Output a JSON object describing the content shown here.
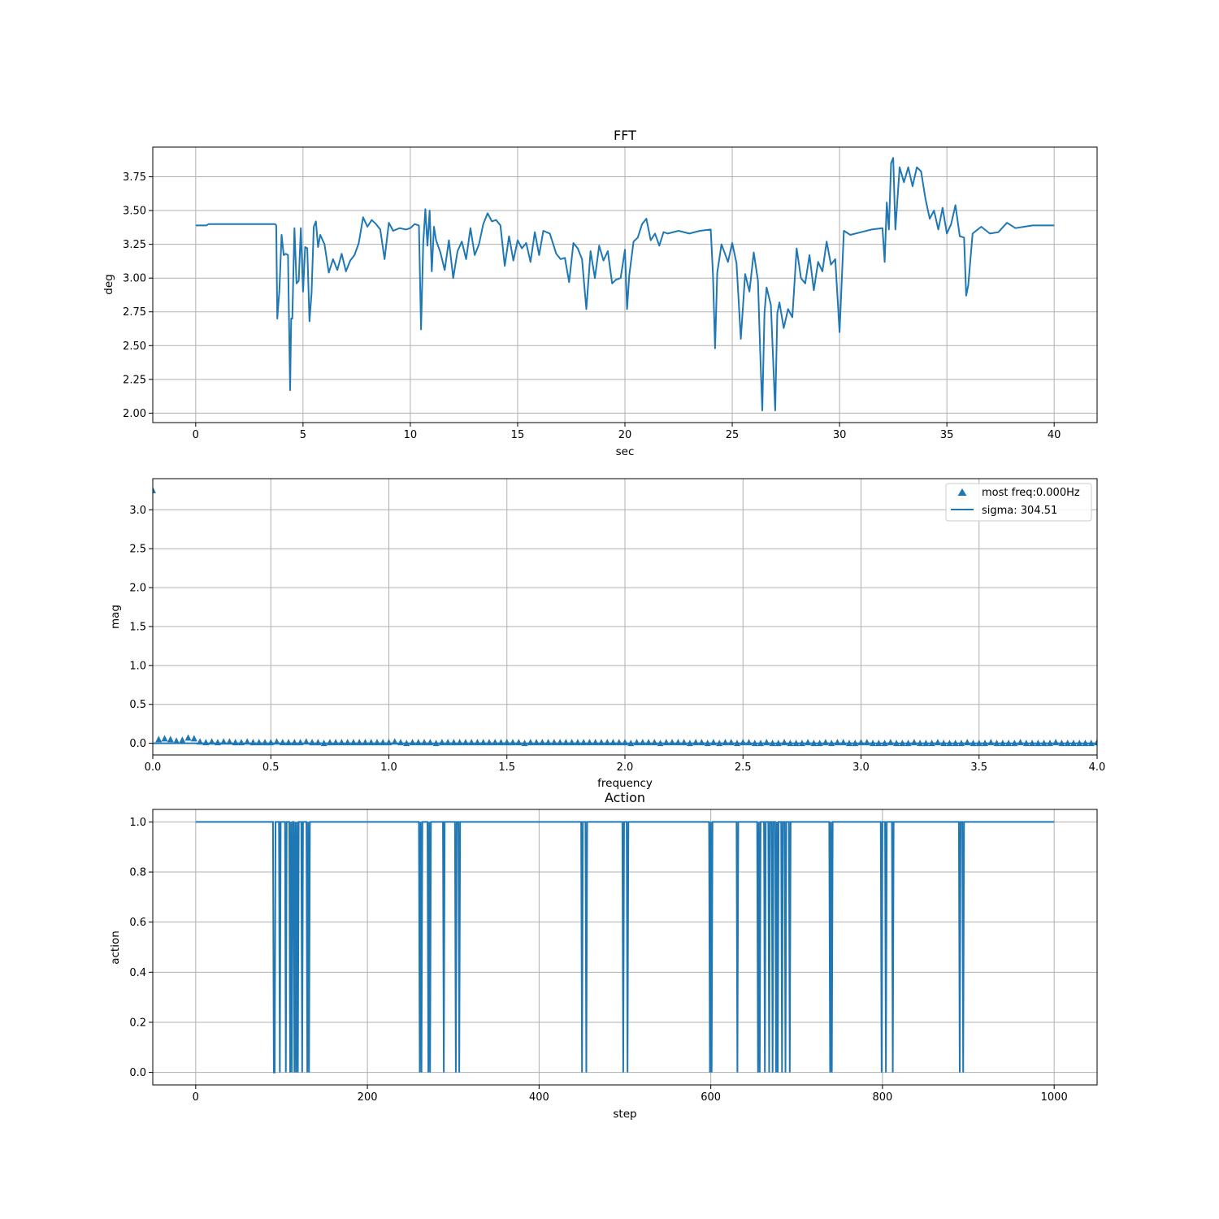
{
  "chart_data": [
    {
      "type": "line",
      "title": "FFT",
      "xlabel": "sec",
      "ylabel": "deg",
      "xlim": [
        -2,
        42
      ],
      "ylim": [
        1.93,
        3.97
      ],
      "xticks": [
        0,
        5,
        10,
        15,
        20,
        25,
        30,
        35,
        40
      ],
      "xtick_labels": [
        "0",
        "5",
        "10",
        "15",
        "20",
        "25",
        "30",
        "35",
        "40"
      ],
      "yticks": [
        2.0,
        2.25,
        2.5,
        2.75,
        3.0,
        3.25,
        3.5,
        3.75
      ],
      "ytick_labels": [
        "2.00",
        "2.25",
        "2.50",
        "2.75",
        "3.00",
        "3.25",
        "3.50",
        "3.75"
      ],
      "grid": true,
      "color": "#1f77b4",
      "series": [
        {
          "x": [
            0,
            0.5,
            0.6,
            3.7,
            3.75,
            3.8,
            3.9,
            4.0,
            4.1,
            4.2,
            4.3,
            4.4,
            4.45,
            4.5,
            4.6,
            4.7,
            4.8,
            4.9,
            5.0,
            5.1,
            5.2,
            5.3,
            5.4,
            5.5,
            5.6,
            5.7,
            5.8,
            6.0,
            6.2,
            6.4,
            6.6,
            6.8,
            7.0,
            7.2,
            7.4,
            7.6,
            7.8,
            8.0,
            8.2,
            8.4,
            8.6,
            8.8,
            9.0,
            9.2,
            9.5,
            9.8,
            10.0,
            10.2,
            10.4,
            10.5,
            10.6,
            10.7,
            10.8,
            10.9,
            11.0,
            11.1,
            11.2,
            11.4,
            11.6,
            11.8,
            12.0,
            12.2,
            12.4,
            12.6,
            12.8,
            13.0,
            13.2,
            13.4,
            13.6,
            13.8,
            14.0,
            14.2,
            14.4,
            14.6,
            14.8,
            15.0,
            15.2,
            15.4,
            15.6,
            15.8,
            16.0,
            16.2,
            16.5,
            16.8,
            17.0,
            17.2,
            17.4,
            17.6,
            17.8,
            18.0,
            18.2,
            18.4,
            18.6,
            18.8,
            19.0,
            19.2,
            19.4,
            19.6,
            19.8,
            20.0,
            20.1,
            20.2,
            20.4,
            20.6,
            20.8,
            21.0,
            21.2,
            21.4,
            21.6,
            21.8,
            22.0,
            22.5,
            23.0,
            23.5,
            24.0,
            24.1,
            24.2,
            24.3,
            24.5,
            24.8,
            25.0,
            25.2,
            25.4,
            25.6,
            25.8,
            26.0,
            26.2,
            26.3,
            26.4,
            26.5,
            26.6,
            26.8,
            27.0,
            27.1,
            27.2,
            27.4,
            27.6,
            27.8,
            28.0,
            28.2,
            28.4,
            28.6,
            28.8,
            29.0,
            29.2,
            29.4,
            29.6,
            29.8,
            30.0,
            30.2,
            30.5,
            31.0,
            31.5,
            32.0,
            32.1,
            32.2,
            32.3,
            32.4,
            32.5,
            32.6,
            32.8,
            33.0,
            33.2,
            33.4,
            33.6,
            33.8,
            34.0,
            34.2,
            34.4,
            34.6,
            34.8,
            35.0,
            35.2,
            35.4,
            35.6,
            35.8,
            35.9,
            36.0,
            36.2,
            36.6,
            37.0,
            37.4,
            37.8,
            38.2,
            38.6,
            39.0,
            39.5,
            40.0
          ],
          "y": [
            3.39,
            3.39,
            3.4,
            3.4,
            3.39,
            2.7,
            2.91,
            3.32,
            3.17,
            3.18,
            3.17,
            2.17,
            2.7,
            2.7,
            3.37,
            2.96,
            2.98,
            3.37,
            2.9,
            3.23,
            3.22,
            2.68,
            2.89,
            3.38,
            3.42,
            3.23,
            3.32,
            3.25,
            3.04,
            3.14,
            3.06,
            3.18,
            3.05,
            3.13,
            3.17,
            3.26,
            3.45,
            3.38,
            3.43,
            3.4,
            3.36,
            3.14,
            3.41,
            3.35,
            3.37,
            3.36,
            3.37,
            3.4,
            3.39,
            2.62,
            3.26,
            3.51,
            3.24,
            3.5,
            3.05,
            3.38,
            3.28,
            3.19,
            3.06,
            3.28,
            3.0,
            3.2,
            3.27,
            3.14,
            3.37,
            3.17,
            3.25,
            3.4,
            3.48,
            3.42,
            3.43,
            3.39,
            3.09,
            3.31,
            3.13,
            3.28,
            3.22,
            3.26,
            3.12,
            3.34,
            3.17,
            3.35,
            3.33,
            3.18,
            3.14,
            3.15,
            2.97,
            3.26,
            3.22,
            3.14,
            2.77,
            3.2,
            3.0,
            3.24,
            3.13,
            3.2,
            2.96,
            2.99,
            3.0,
            3.21,
            2.77,
            3.02,
            3.27,
            3.3,
            3.4,
            3.44,
            3.28,
            3.33,
            3.24,
            3.34,
            3.33,
            3.35,
            3.33,
            3.35,
            3.36,
            3.03,
            2.48,
            3.04,
            3.25,
            3.12,
            3.26,
            3.11,
            2.55,
            3.03,
            2.9,
            3.19,
            2.98,
            2.46,
            2.02,
            2.74,
            2.93,
            2.8,
            2.02,
            2.74,
            2.82,
            2.63,
            2.77,
            2.71,
            3.22,
            3.0,
            2.96,
            3.17,
            2.91,
            3.12,
            3.05,
            3.27,
            3.1,
            3.14,
            2.6,
            3.35,
            3.32,
            3.34,
            3.36,
            3.37,
            3.12,
            3.56,
            3.36,
            3.85,
            3.89,
            3.36,
            3.82,
            3.71,
            3.82,
            3.68,
            3.82,
            3.79,
            3.59,
            3.44,
            3.5,
            3.36,
            3.52,
            3.33,
            3.4,
            3.54,
            3.31,
            3.3,
            2.87,
            2.95,
            3.33,
            3.38,
            3.33,
            3.34,
            3.41,
            3.37,
            3.38,
            3.39,
            3.39,
            3.39
          ]
        }
      ]
    },
    {
      "type": "scatter",
      "title": "",
      "xlabel": "frequency",
      "ylabel": "mag",
      "xlim": [
        0,
        4.0
      ],
      "ylim": [
        -0.15,
        3.4
      ],
      "xticks": [
        0.0,
        0.5,
        1.0,
        1.5,
        2.0,
        2.5,
        3.0,
        3.5,
        4.0
      ],
      "xtick_labels": [
        "0.0",
        "0.5",
        "1.0",
        "1.5",
        "2.0",
        "2.5",
        "3.0",
        "3.5",
        "4.0"
      ],
      "yticks": [
        0.0,
        0.5,
        1.0,
        1.5,
        2.0,
        2.5,
        3.0
      ],
      "ytick_labels": [
        "0.0",
        "0.5",
        "1.0",
        "1.5",
        "2.0",
        "2.5",
        "3.0"
      ],
      "grid": true,
      "legend": {
        "placement": "upper-right",
        "entries": [
          "most freq:0.000Hz",
          "sigma: 304.51"
        ]
      },
      "series": [
        {
          "name": "most freq:0.000Hz",
          "marker": "triangle-up",
          "color": "#1f77b4",
          "step": 0.025,
          "x_start": 0.0,
          "y": [
            3.25,
            0.05,
            0.06,
            0.05,
            0.03,
            0.04,
            0.07,
            0.06,
            0.02,
            0.01,
            0.02,
            0.01,
            0.02,
            0.02,
            0.01,
            0.01,
            0.02,
            0.01,
            0.01,
            0.01,
            0.01,
            0.02,
            0.01,
            0.01,
            0.01,
            0.01,
            0.02,
            0.01,
            0.01,
            0.0,
            0.01,
            0.01,
            0.01,
            0.01,
            0.01,
            0.01,
            0.01,
            0.01,
            0.01,
            0.01,
            0.01,
            0.02,
            0.01,
            0.0,
            0.01,
            0.01,
            0.01,
            0.01,
            0.0,
            0.01,
            0.01,
            0.01,
            0.01,
            0.01,
            0.01,
            0.01,
            0.01,
            0.01,
            0.01,
            0.01,
            0.01,
            0.01,
            0.01,
            0.0,
            0.01,
            0.01,
            0.01,
            0.01,
            0.01,
            0.01,
            0.01,
            0.01,
            0.01,
            0.01,
            0.01,
            0.01,
            0.01,
            0.01,
            0.01,
            0.01,
            0.01,
            0.0,
            0.01,
            0.01,
            0.01,
            0.01,
            0.0,
            0.01,
            0.01,
            0.01,
            0.01,
            0.0,
            0.01,
            0.01,
            0.0,
            0.01,
            0.0,
            0.01,
            0.01,
            0.0,
            0.01,
            0.01,
            0.0,
            0.0,
            0.01,
            0.0,
            0.0,
            0.01,
            0.0,
            0.0,
            0.0,
            0.01,
            0.0,
            0.0,
            0.01,
            0.0,
            0.01,
            0.01,
            0.0,
            0.0,
            0.01,
            0.01,
            0.0,
            0.0,
            0.0,
            0.01,
            0.0,
            0.0,
            0.0,
            0.01,
            0.0,
            0.0,
            0.0,
            0.01,
            0.0,
            0.0,
            0.0,
            0.0,
            0.01,
            0.0,
            0.0,
            0.0,
            0.01,
            0.0,
            0.0,
            0.0,
            0.0,
            0.01,
            0.0,
            0.0,
            0.0,
            0.0,
            0.0,
            0.01,
            0.0,
            0.0,
            0.0,
            0.0,
            0.0,
            0.0,
            0.01
          ]
        },
        {
          "name": "sigma: 304.51",
          "type": "line",
          "color": "#1f77b4",
          "x": [
            0.0,
            4.0
          ],
          "y": [
            0.0,
            0.0
          ]
        }
      ]
    },
    {
      "type": "line",
      "title": "Action",
      "xlabel": "step",
      "ylabel": "action",
      "xlim": [
        -50,
        1050
      ],
      "ylim": [
        -0.05,
        1.05
      ],
      "xticks": [
        0,
        200,
        400,
        600,
        800,
        1000
      ],
      "xtick_labels": [
        "0",
        "200",
        "400",
        "600",
        "800",
        "1000"
      ],
      "yticks": [
        0.0,
        0.2,
        0.4,
        0.6,
        0.8,
        1.0
      ],
      "ytick_labels": [
        "0.0",
        "0.2",
        "0.4",
        "0.6",
        "0.8",
        "1.0"
      ],
      "grid": true,
      "color": "#1f77b4",
      "series": [
        {
          "x_range": [
            0,
            1000
          ],
          "default_value": 1,
          "zero_steps": [
            91,
            92,
            98,
            105,
            110,
            112,
            115,
            117,
            119,
            124,
            130,
            132,
            261,
            263,
            271,
            273,
            289,
            303,
            307,
            450,
            455,
            498,
            503,
            599,
            601,
            631,
            655,
            657,
            663,
            668,
            672,
            676,
            678,
            683,
            687,
            692,
            739,
            741,
            799,
            804,
            812,
            890,
            894
          ]
        }
      ]
    }
  ]
}
